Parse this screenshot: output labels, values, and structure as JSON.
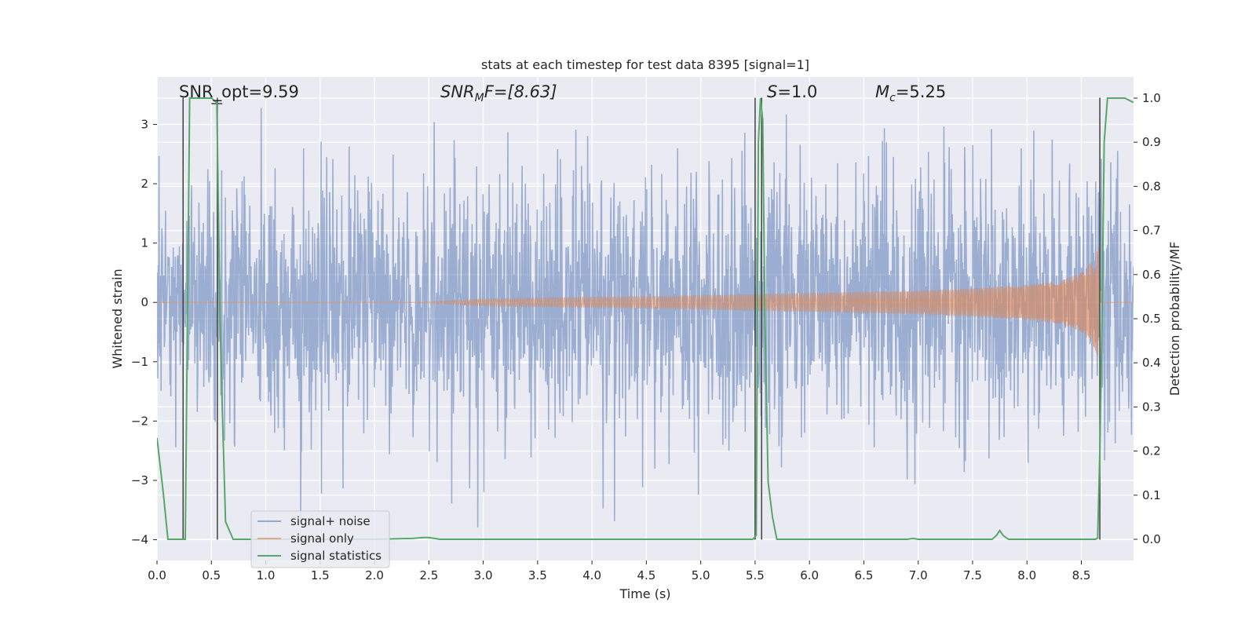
{
  "chart_data": {
    "type": "line",
    "title": "stats at each timestep for test data 8395 [signal=1]",
    "xlabel": "Time (s)",
    "ylabel": "Whitened strain",
    "y2label": "Detection probability/MF",
    "xlim": [
      0.0,
      8.98
    ],
    "ylim": [
      -4.35,
      3.8
    ],
    "y2lim": [
      -0.048,
      1.048
    ],
    "x_ticks": [
      0.0,
      0.5,
      1.0,
      1.5,
      2.0,
      2.5,
      3.0,
      3.5,
      4.0,
      4.5,
      5.0,
      5.5,
      6.0,
      6.5,
      7.0,
      7.5,
      8.0,
      8.5
    ],
    "x_tick_labels": [
      "0.0",
      "0.5",
      "1.0",
      "1.5",
      "2.0",
      "2.5",
      "3.0",
      "3.5",
      "4.0",
      "4.5",
      "5.0",
      "5.5",
      "6.0",
      "6.5",
      "7.0",
      "7.5",
      "8.0",
      "8.5"
    ],
    "y_ticks": [
      3,
      2,
      1,
      0,
      -1,
      -2,
      -3,
      -4
    ],
    "y_tick_labels": [
      "3",
      "2",
      "1",
      "0",
      "−1",
      "−2",
      "−3",
      "−4"
    ],
    "y2_ticks": [
      1.0,
      0.9,
      0.8,
      0.7,
      0.6,
      0.5,
      0.4,
      0.3,
      0.2,
      0.1,
      0.0
    ],
    "y2_tick_labels": [
      "1.0",
      "0.9",
      "0.8",
      "0.7",
      "0.6",
      "0.5",
      "0.4",
      "0.3",
      "0.2",
      "0.1",
      "0.0"
    ],
    "grid": true,
    "legend_position": "lower-left",
    "series": [
      {
        "name": "signal+ noise",
        "color": "#4c72b0",
        "description_values": "dense whitened noise, approx range -3.8 to 3.5",
        "noise_typical_low": -1.7,
        "noise_typical_high": 1.7,
        "noise_spike_max": 3.45,
        "noise_spike_min": -3.8
      },
      {
        "name": "signal only",
        "color": "#dd8452",
        "chirp_start": 2.4,
        "chirp_end": 8.66,
        "envelope_x": [
          2.4,
          3.0,
          4.0,
          5.0,
          5.5,
          6.0,
          7.0,
          7.5,
          8.0,
          8.3,
          8.5,
          8.6,
          8.66
        ],
        "envelope_y": [
          0.0,
          0.06,
          0.09,
          0.12,
          0.14,
          0.16,
          0.2,
          0.24,
          0.3,
          0.36,
          0.5,
          0.7,
          0.95
        ]
      },
      {
        "name": "signal statistics",
        "color": "#55a868",
        "x": [
          0.0,
          0.06,
          0.1,
          0.2,
          0.24,
          0.26,
          0.3,
          0.35,
          0.4,
          0.45,
          0.5,
          0.55,
          0.58,
          0.6,
          0.63,
          0.7,
          0.8,
          1.0,
          2.0,
          2.35,
          2.45,
          2.5,
          2.6,
          3.0,
          4.0,
          5.0,
          5.4,
          5.48,
          5.51,
          5.53,
          5.55,
          5.57,
          5.59,
          5.62,
          5.66,
          5.7,
          6.0,
          6.9,
          6.95,
          7.0,
          7.5,
          7.68,
          7.72,
          7.75,
          7.78,
          7.83,
          8.0,
          8.5,
          8.63,
          8.65,
          8.67,
          8.69,
          8.71,
          8.74,
          8.78,
          8.9,
          8.98
        ],
        "y": [
          0.23,
          0.1,
          0.0,
          0.0,
          0.0,
          0.0,
          1.0,
          1.0,
          1.0,
          1.0,
          1.0,
          0.99,
          0.5,
          0.3,
          0.04,
          0.0,
          0.0,
          0.0,
          0.0,
          0.002,
          0.004,
          0.004,
          0.0,
          0.0,
          0.0,
          0.0,
          0.0,
          0.0,
          0.009,
          0.9,
          1.0,
          0.95,
          0.5,
          0.13,
          0.05,
          0.0,
          0.0,
          0.0,
          0.002,
          0.0,
          0.0,
          0.0,
          0.009,
          0.02,
          0.009,
          0.0,
          0.0,
          0.0,
          0.0,
          0.003,
          0.2,
          0.5,
          0.9,
          1.0,
          1.0,
          1.0,
          0.99
        ]
      }
    ],
    "vertical_markers": [
      0.24,
      0.555,
      5.5,
      5.56,
      8.67
    ],
    "annotations": [
      {
        "name": "snr-opt",
        "text": "SNR_opt=9.59",
        "x": 0.2
      },
      {
        "name": "snr-mf",
        "main": "SNR",
        "sub": "M",
        "rest": "F=[8.63]",
        "x": 2.6
      },
      {
        "name": "s-value",
        "main": "S",
        "rest": "=1.0",
        "x": 5.6
      },
      {
        "name": "mc-value",
        "main": "M",
        "sub": "c",
        "rest": "=5.25",
        "x": 6.6
      }
    ]
  },
  "colors": {
    "plot_bg": "#eaeaf2",
    "grid": "#ffffff",
    "noise": "#4c72b0",
    "signal": "#dd8452",
    "stats": "#55a868",
    "marker": "#404040"
  }
}
